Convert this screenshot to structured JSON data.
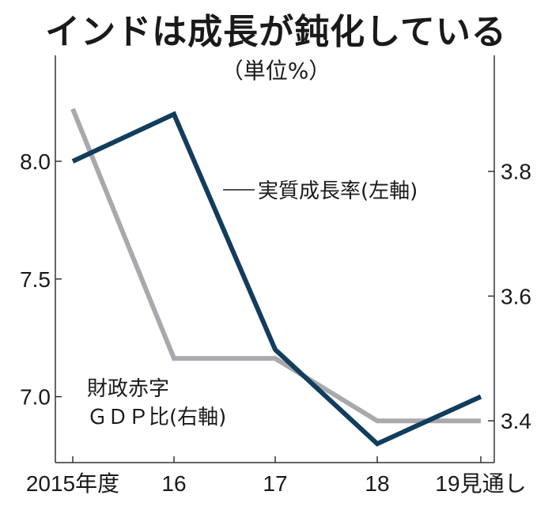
{
  "title": "インドは成長が鈍化している",
  "unit": "（単位%）",
  "chart_data": {
    "type": "line",
    "categories": [
      "2015年度",
      "16",
      "17",
      "18",
      "19見通し"
    ],
    "left_axis": {
      "ticks": [
        "8.0",
        "7.5",
        "7.0"
      ],
      "ylim": [
        6.72,
        8.45
      ]
    },
    "right_axis": {
      "ticks": [
        "3.8",
        "3.6",
        "3.4"
      ],
      "ylim": [
        3.333,
        3.986
      ]
    },
    "series": [
      {
        "name": "実質成長率(左軸)",
        "axis": "left",
        "color": "#123d5c",
        "values": [
          8.0,
          8.2,
          7.2,
          6.8,
          7.0
        ]
      },
      {
        "name": "財政赤字GDP比(右軸)",
        "axis": "right",
        "color": "#a9a9ad",
        "values": [
          3.9,
          3.5,
          3.5,
          3.4,
          3.4
        ]
      }
    ],
    "labels": {
      "growth": "実質成長率(左軸)",
      "deficit_line1": "財政赤字",
      "deficit_line2": "ＧＤＰ比(右軸)"
    }
  }
}
